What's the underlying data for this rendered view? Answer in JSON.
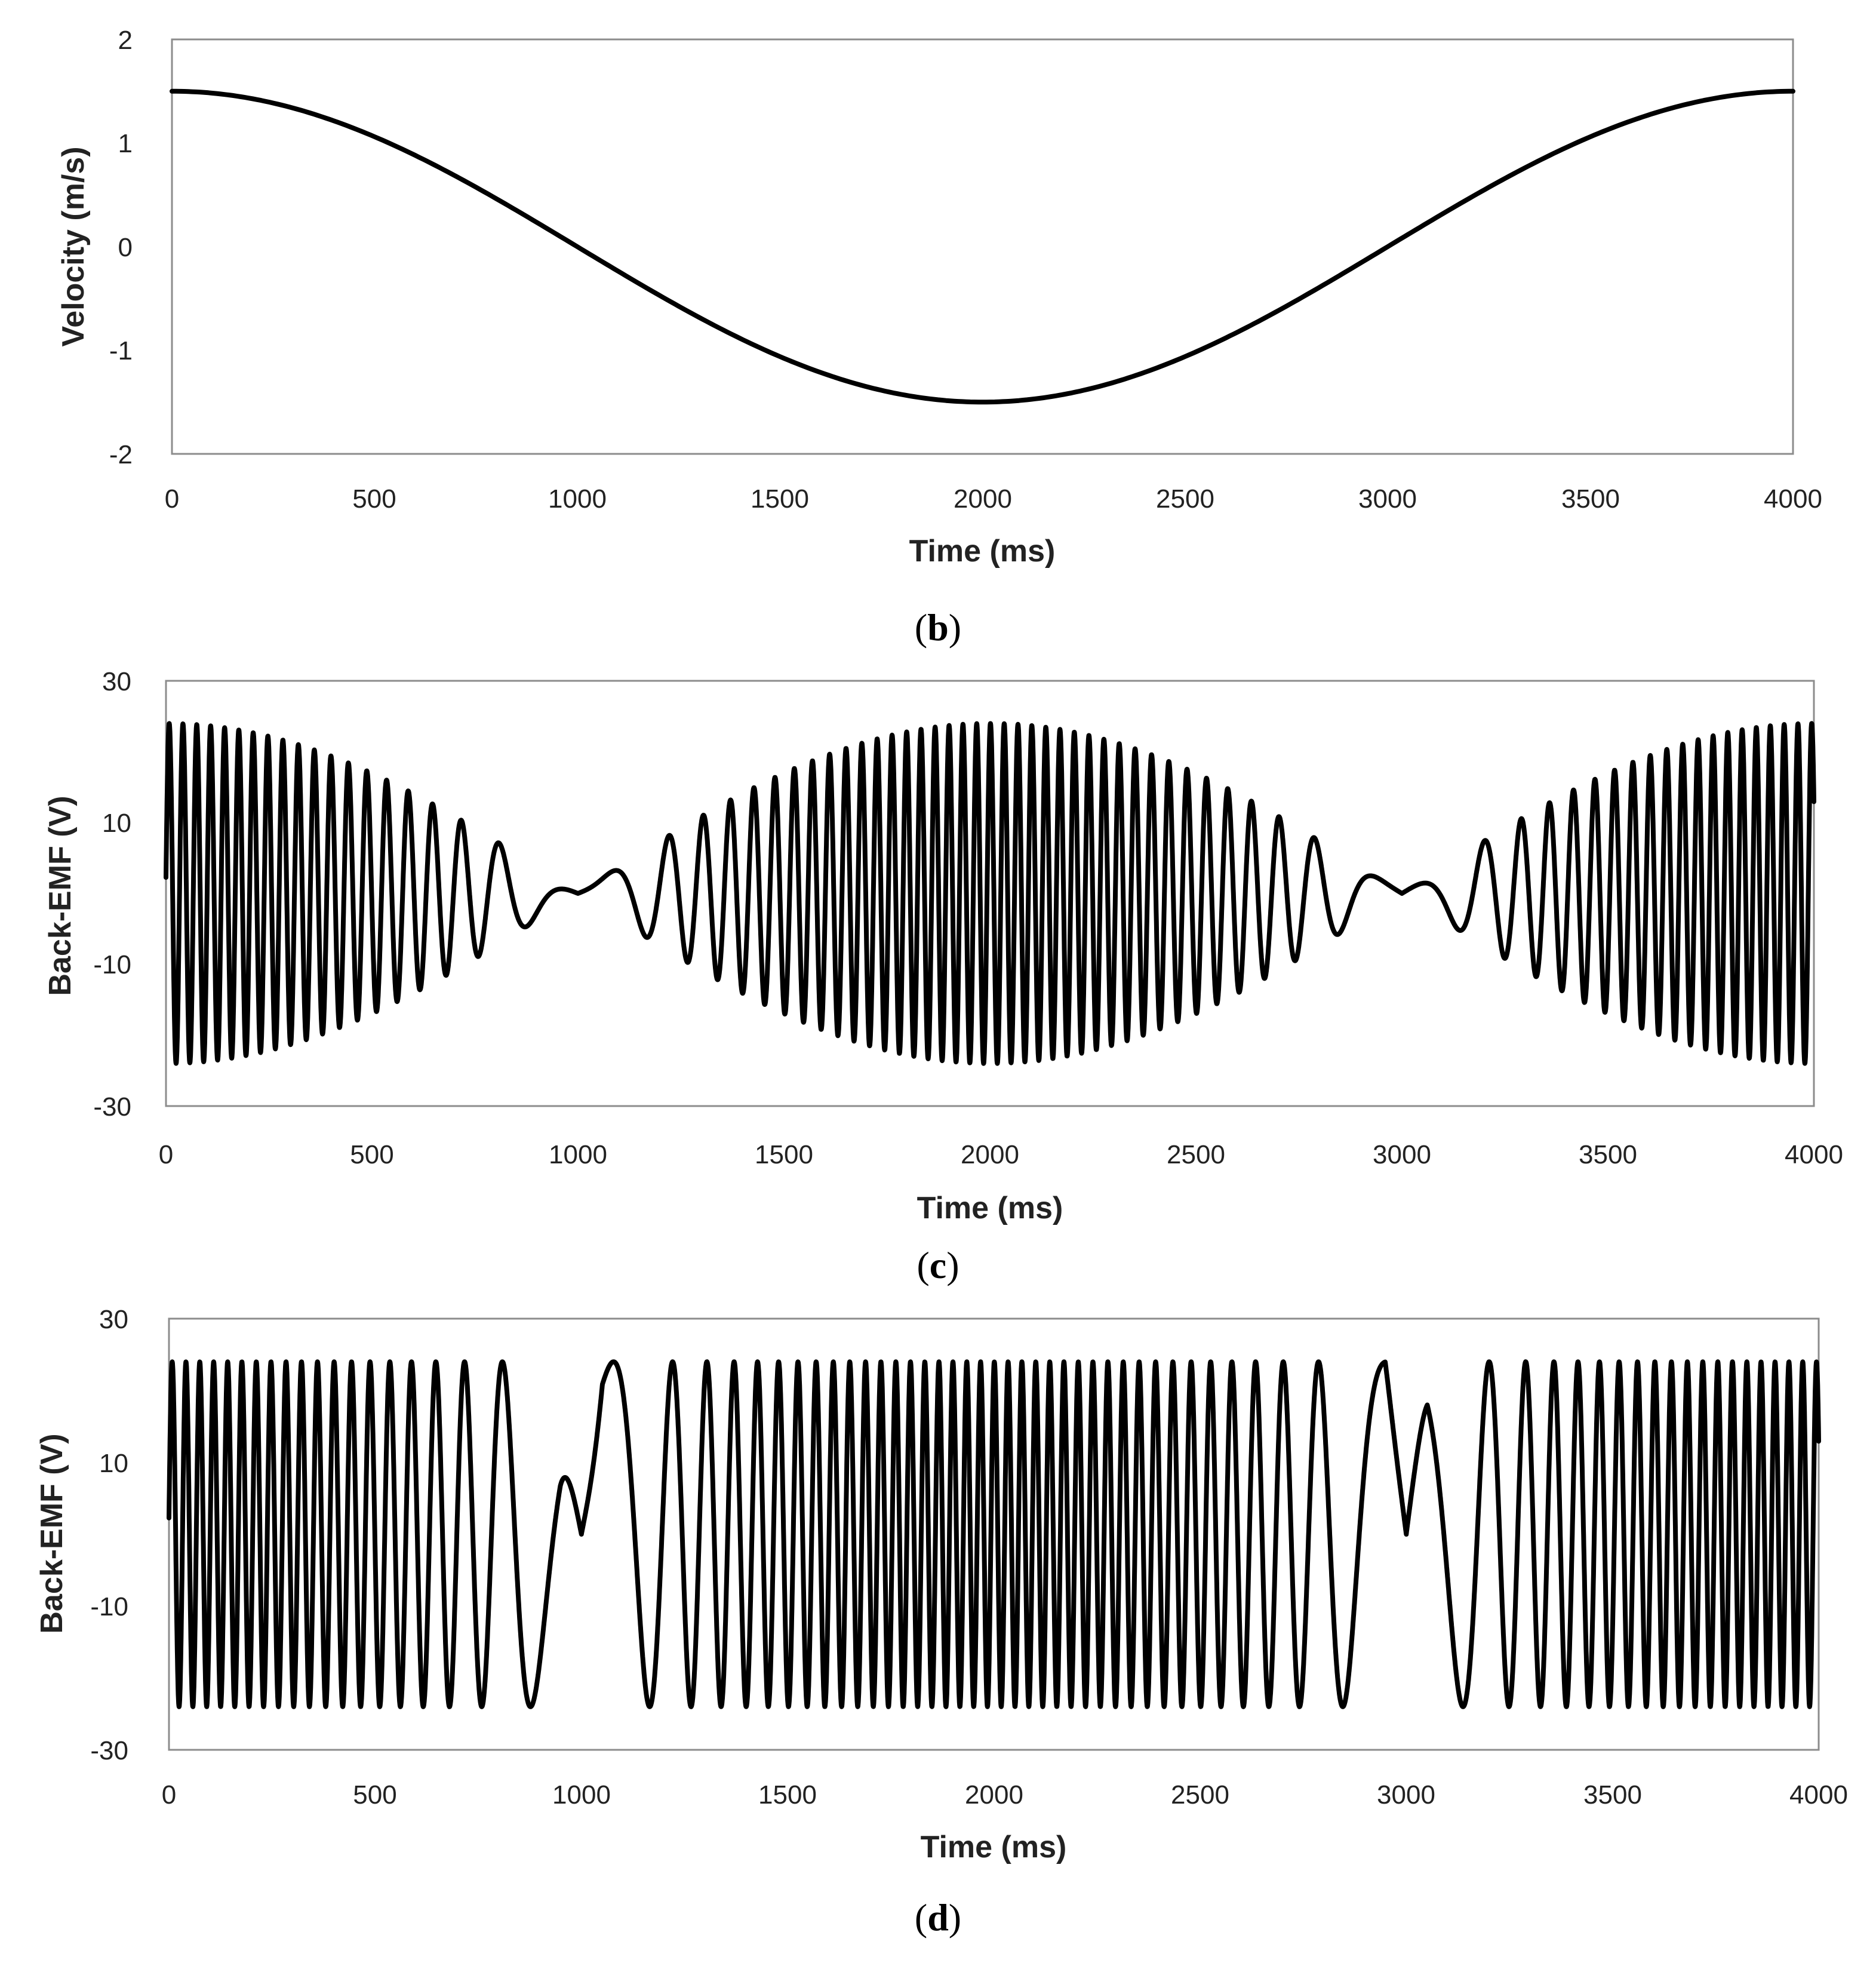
{
  "colors": {
    "background": "#ffffff",
    "series": "#000000",
    "frame": "#8c8c8c",
    "text": "#222222"
  },
  "chart_data": [
    {
      "type": "line",
      "panel": "b",
      "caption": {
        "open": "(",
        "letter": "b",
        "close": ")"
      },
      "xlabel": "Time (ms)",
      "ylabel": "Velocity (m/s)",
      "xlim": [
        0,
        4000
      ],
      "ylim": [
        -2,
        2
      ],
      "xticks": [
        0,
        500,
        1000,
        1500,
        2000,
        2500,
        3000,
        3500,
        4000
      ],
      "yticks": [
        2,
        1,
        0,
        -1,
        -2
      ],
      "grid": false,
      "series": [
        {
          "name": "Velocity",
          "model": "cosine",
          "amplitude": 1.5,
          "period_ms": 4000,
          "x": [
            0,
            250,
            500,
            750,
            1000,
            1250,
            1500,
            1750,
            2000,
            2250,
            2500,
            2750,
            3000,
            3250,
            3500,
            3750,
            4000
          ],
          "values": [
            1.5,
            1.39,
            1.06,
            0.57,
            0.0,
            -0.57,
            -1.06,
            -1.39,
            -1.5,
            -1.39,
            -1.06,
            -0.57,
            0.0,
            0.57,
            1.06,
            1.39,
            1.5
          ]
        }
      ]
    },
    {
      "type": "line",
      "panel": "c",
      "caption": {
        "open": "(",
        "letter": "c",
        "close": ")"
      },
      "xlabel": "Time (ms)",
      "ylabel": "Back-EMF (V)",
      "xlim": [
        0,
        4000
      ],
      "ylim": [
        -30,
        30
      ],
      "xticks": [
        0,
        500,
        1000,
        1500,
        2000,
        2500,
        3000,
        3500,
        4000
      ],
      "yticks": [
        30,
        10,
        -10,
        -30
      ],
      "grid": false,
      "series": [
        {
          "name": "Back-EMF",
          "model": "am_phase_from_velocity",
          "peak_amplitude": 24,
          "peak_frequency_cycles_per_s": 30,
          "clip_v": 24,
          "start_ms": 0,
          "end_ms": 4000
        }
      ]
    },
    {
      "type": "line",
      "panel": "d",
      "caption": {
        "open": "(",
        "letter": "d",
        "close": ")"
      },
      "xlabel": "Time (ms)",
      "ylabel": "Back-EMF (V)",
      "xlim": [
        0,
        4000
      ],
      "ylim": [
        -30,
        30
      ],
      "xticks": [
        0,
        500,
        1000,
        1500,
        2000,
        2500,
        3000,
        3500,
        4000
      ],
      "yticks": [
        30,
        10,
        -10,
        -30
      ],
      "grid": false,
      "series": [
        {
          "name": "Back-EMF",
          "model": "fm_constant_amplitude",
          "amplitude": 24,
          "peak_frequency_cycles_per_s": 30,
          "clip_v": 24,
          "start_ms": 0,
          "end_ms": 4000
        }
      ]
    }
  ]
}
